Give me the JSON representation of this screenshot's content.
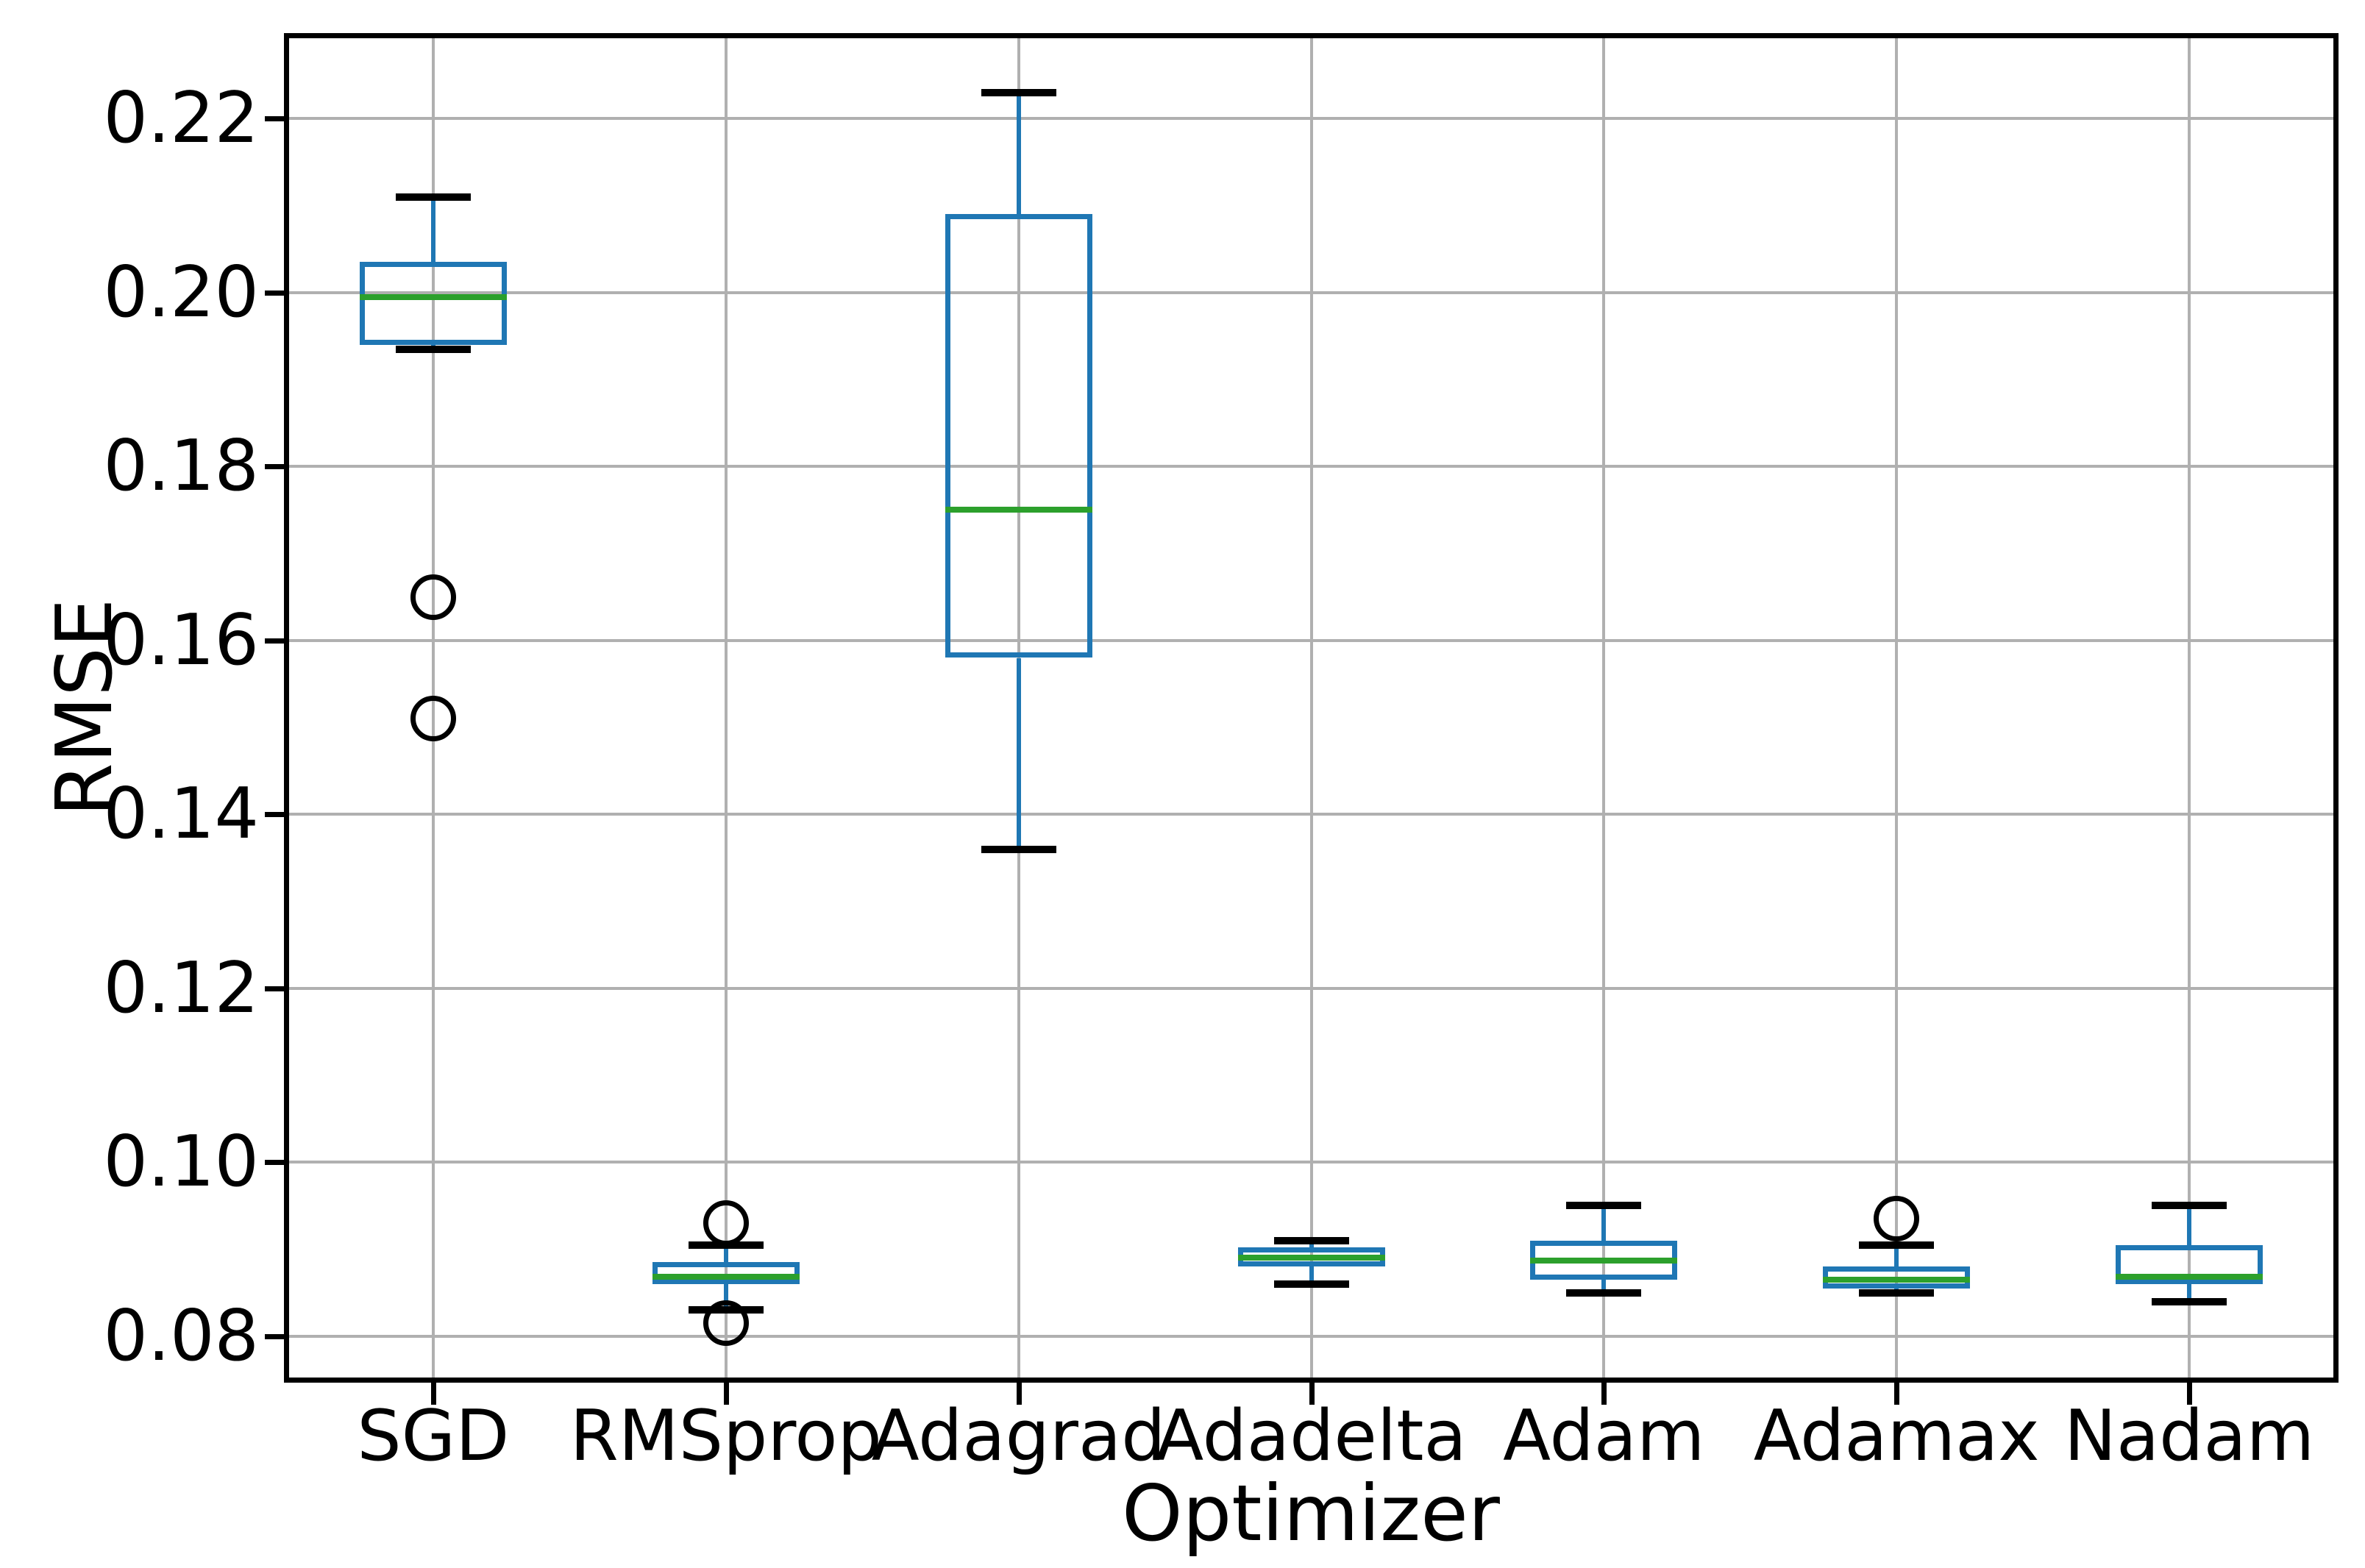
{
  "chart_data": {
    "type": "boxplot",
    "title": "",
    "xlabel": "Optimizer",
    "ylabel": "RMSE",
    "categories": [
      "SGD",
      "RMSprop",
      "Adagrad",
      "Adadelta",
      "Adam",
      "Adamax",
      "Nadam"
    ],
    "ylim": [
      0.075,
      0.2295
    ],
    "yticks": [
      0.08,
      0.1,
      0.12,
      0.14,
      0.16,
      0.18,
      0.2,
      0.22
    ],
    "yticklabels": [
      "0.08",
      "0.10",
      "0.12",
      "0.14",
      "0.16",
      "0.18",
      "0.20",
      "0.22"
    ],
    "grid": true,
    "legend": "none",
    "series": [
      {
        "name": "SGD",
        "whislo": 0.1935,
        "q1": 0.194,
        "med": 0.1995,
        "q3": 0.2035,
        "whishi": 0.211,
        "fliers": [
          0.165,
          0.151
        ]
      },
      {
        "name": "RMSprop",
        "whislo": 0.083,
        "q1": 0.086,
        "med": 0.0868,
        "q3": 0.0885,
        "whishi": 0.0905,
        "fliers": [
          0.093,
          0.0815
        ]
      },
      {
        "name": "Adagrad",
        "whislo": 0.136,
        "q1": 0.158,
        "med": 0.175,
        "q3": 0.209,
        "whishi": 0.223,
        "fliers": []
      },
      {
        "name": "Adadelta",
        "whislo": 0.086,
        "q1": 0.088,
        "med": 0.089,
        "q3": 0.0902,
        "whishi": 0.091,
        "fliers": []
      },
      {
        "name": "Adam",
        "whislo": 0.085,
        "q1": 0.0865,
        "med": 0.0887,
        "q3": 0.091,
        "whishi": 0.095,
        "fliers": []
      },
      {
        "name": "Adamax",
        "whislo": 0.085,
        "q1": 0.0855,
        "med": 0.0865,
        "q3": 0.088,
        "whishi": 0.0905,
        "fliers": [
          0.0935
        ]
      },
      {
        "name": "Nadam",
        "whislo": 0.084,
        "q1": 0.086,
        "med": 0.0868,
        "q3": 0.0905,
        "whishi": 0.095,
        "fliers": []
      }
    ],
    "colors": {
      "box": "#1f77b4",
      "whisker": "#1f77b4",
      "median": "#2ca02c",
      "cap": "#000000",
      "flier": "#000000",
      "grid": "#b0b0b0",
      "spine": "#000000",
      "background": "#ffffff"
    }
  }
}
